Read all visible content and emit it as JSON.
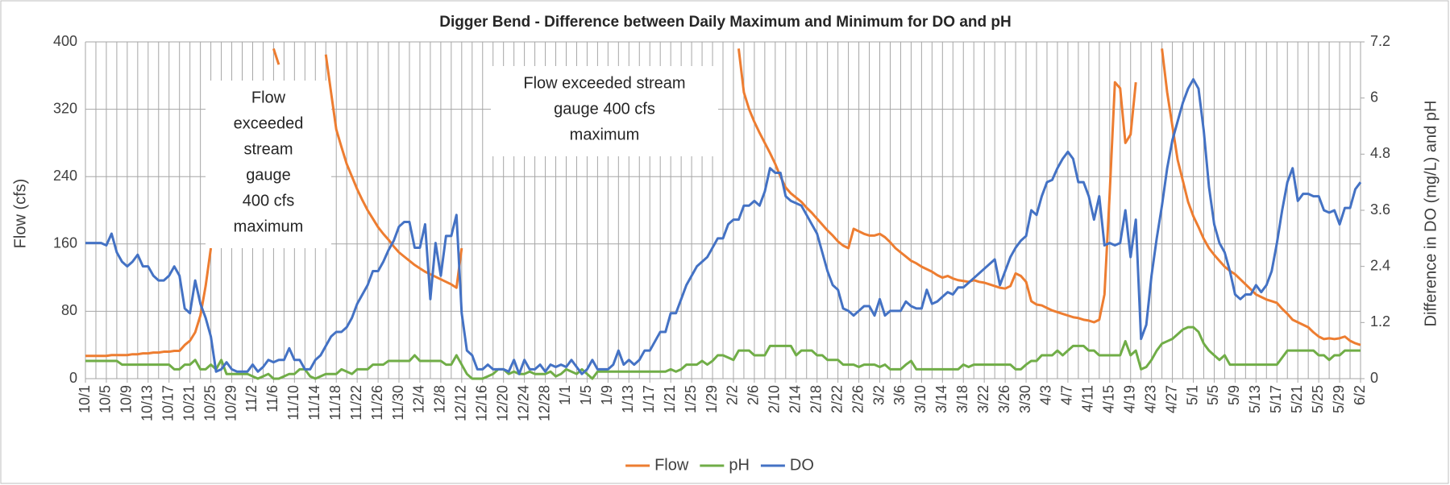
{
  "chart_data": {
    "type": "line",
    "title": "Digger Bend - Difference between Daily Maximum and Minimum for DO and pH",
    "y_label": "Flow (cfs)",
    "y2_label": "Difference in DO (mg/L) and pH",
    "annotations": [
      [
        "Flow",
        "exceeded",
        "stream",
        "gauge",
        "400 cfs",
        "maximum"
      ],
      [
        "Flow exceeded stream",
        "gauge 400 cfs",
        "maximum"
      ]
    ],
    "categories": [
      "10/1",
      null,
      null,
      null,
      "10/5",
      null,
      null,
      null,
      "10/9",
      null,
      null,
      null,
      "10/13",
      null,
      null,
      null,
      "10/17",
      null,
      null,
      null,
      "10/21",
      null,
      null,
      null,
      "10/25",
      null,
      null,
      null,
      "10/29",
      null,
      null,
      null,
      "11/2",
      null,
      null,
      null,
      "11/6",
      null,
      null,
      null,
      "11/10",
      null,
      null,
      null,
      "11/14",
      null,
      null,
      null,
      "11/18",
      null,
      null,
      null,
      "11/22",
      null,
      null,
      null,
      "11/26",
      null,
      null,
      null,
      "11/30",
      null,
      null,
      null,
      "12/4",
      null,
      null,
      null,
      "12/8",
      null,
      null,
      null,
      "12/12",
      null,
      null,
      null,
      "12/16",
      null,
      null,
      null,
      "12/20",
      null,
      null,
      null,
      "12/24",
      null,
      null,
      null,
      "12/28",
      null,
      null,
      null,
      "1/1",
      null,
      null,
      null,
      "1/5",
      null,
      null,
      null,
      "1/9",
      null,
      null,
      null,
      "1/13",
      null,
      null,
      null,
      "1/17",
      null,
      null,
      null,
      "1/21",
      null,
      null,
      null,
      "1/25",
      null,
      null,
      null,
      "1/29",
      null,
      null,
      null,
      "2/2",
      null,
      null,
      null,
      "2/6",
      null,
      null,
      null,
      "2/10",
      null,
      null,
      null,
      "2/14",
      null,
      null,
      null,
      "2/18",
      null,
      null,
      null,
      "2/22",
      null,
      null,
      null,
      "2/26",
      null,
      null,
      null,
      "3/2",
      null,
      null,
      null,
      "3/6",
      null,
      null,
      null,
      "3/10",
      null,
      null,
      null,
      "3/14",
      null,
      null,
      null,
      "3/18",
      null,
      null,
      null,
      "3/22",
      null,
      null,
      null,
      "3/26",
      null,
      null,
      null,
      "3/30",
      null,
      null,
      null,
      "4/3",
      null,
      null,
      null,
      "4/7",
      null,
      null,
      null,
      "4/11",
      null,
      null,
      null,
      "4/15",
      null,
      null,
      null,
      "4/19",
      null,
      null,
      null,
      "4/23",
      null,
      null,
      null,
      "4/27",
      null,
      null,
      null,
      "5/1",
      null,
      null,
      null,
      "5/5",
      null,
      null,
      null,
      "5/9",
      null,
      null,
      null,
      "5/13",
      null,
      null,
      null,
      "5/17",
      null,
      null,
      null,
      "5/21",
      null,
      null,
      null,
      "5/25",
      null,
      null,
      null,
      "5/29",
      null,
      null,
      null,
      "6/2"
    ],
    "series": [
      {
        "name": "Flow",
        "color": "#ed7d31",
        "axis": "y",
        "values": [
          27,
          27,
          27,
          27,
          27,
          28,
          28,
          28,
          28,
          29,
          29,
          30,
          30,
          31,
          31,
          32,
          32,
          33,
          33,
          40,
          45,
          55,
          75,
          110,
          155,
          null,
          null,
          null,
          null,
          null,
          null,
          null,
          null,
          null,
          null,
          null,
          392,
          373,
          null,
          null,
          null,
          null,
          null,
          null,
          null,
          null,
          385,
          340,
          296,
          275,
          255,
          240,
          225,
          212,
          200,
          190,
          180,
          172,
          165,
          157,
          150,
          145,
          140,
          135,
          131,
          127,
          124,
          121,
          118,
          115,
          112,
          108,
          155,
          null,
          null,
          null,
          null,
          null,
          null,
          null,
          null,
          null,
          null,
          null,
          null,
          null,
          null,
          null,
          null,
          null,
          null,
          null,
          null,
          null,
          null,
          null,
          null,
          null,
          null,
          null,
          null,
          null,
          null,
          null,
          null,
          null,
          null,
          null,
          null,
          null,
          null,
          null,
          null,
          null,
          null,
          null,
          null,
          null,
          null,
          null,
          null,
          null,
          null,
          null,
          null,
          392,
          340,
          320,
          305,
          292,
          280,
          268,
          255,
          240,
          227,
          220,
          215,
          210,
          203,
          197,
          190,
          183,
          176,
          170,
          163,
          158,
          155,
          178,
          175,
          172,
          170,
          170,
          172,
          168,
          162,
          155,
          150,
          145,
          140,
          137,
          133,
          130,
          127,
          123,
          120,
          122,
          119,
          117,
          116,
          115,
          117,
          115,
          114,
          112,
          110,
          108,
          107,
          110,
          125,
          122,
          115,
          92,
          88,
          87,
          84,
          81,
          79,
          77,
          75,
          73,
          72,
          70,
          69,
          67,
          70,
          100,
          220,
          352,
          345,
          280,
          290,
          352,
          null,
          null,
          null,
          null,
          392,
          340,
          300,
          260,
          235,
          210,
          193,
          180,
          166,
          155,
          147,
          140,
          133,
          128,
          124,
          118,
          112,
          106,
          100,
          97,
          94,
          92,
          90,
          83,
          77,
          70,
          67,
          64,
          61,
          55,
          50,
          47,
          48,
          47,
          48,
          50,
          45,
          42,
          40
        ]
      },
      {
        "name": "pH",
        "color": "#70ad47",
        "axis": "y2",
        "values": [
          0.38,
          0.38,
          0.38,
          0.38,
          0.38,
          0.38,
          0.38,
          0.3,
          0.3,
          0.3,
          0.3,
          0.3,
          0.3,
          0.3,
          0.3,
          0.3,
          0.3,
          0.2,
          0.2,
          0.3,
          0.3,
          0.4,
          0.2,
          0.2,
          0.3,
          0.2,
          0.4,
          0.1,
          0.1,
          0.1,
          0.1,
          0.1,
          0.05,
          0,
          0.05,
          0.1,
          0,
          0,
          0.05,
          0.1,
          0.1,
          0.2,
          0.2,
          0.05,
          0,
          0.05,
          0.1,
          0.1,
          0.1,
          0.2,
          0.15,
          0.1,
          0.2,
          0.2,
          0.2,
          0.3,
          0.3,
          0.3,
          0.38,
          0.38,
          0.38,
          0.38,
          0.38,
          0.5,
          0.38,
          0.38,
          0.38,
          0.38,
          0.38,
          0.3,
          0.3,
          0.5,
          0.3,
          0.1,
          0,
          0,
          0,
          0.05,
          0.1,
          0.2,
          0.2,
          0.1,
          0.15,
          0.1,
          0.1,
          0.15,
          0.1,
          0.1,
          0.1,
          0.15,
          0.05,
          0.1,
          0.2,
          0.15,
          0.1,
          0.2,
          0.1,
          0,
          0.15,
          0.15,
          0.15,
          0.15,
          0.15,
          0.15,
          0.15,
          0.15,
          0.15,
          0.15,
          0.15,
          0.15,
          0.15,
          0.15,
          0.2,
          0.15,
          0.2,
          0.3,
          0.3,
          0.3,
          0.38,
          0.3,
          0.38,
          0.5,
          0.5,
          0.45,
          0.4,
          0.6,
          0.6,
          0.6,
          0.5,
          0.5,
          0.5,
          0.7,
          0.7,
          0.7,
          0.7,
          0.7,
          0.5,
          0.6,
          0.6,
          0.6,
          0.5,
          0.5,
          0.4,
          0.4,
          0.4,
          0.3,
          0.3,
          0.3,
          0.25,
          0.3,
          0.3,
          0.3,
          0.25,
          0.3,
          0.2,
          0.2,
          0.2,
          0.3,
          0.38,
          0.2,
          0.2,
          0.2,
          0.2,
          0.2,
          0.2,
          0.2,
          0.2,
          0.2,
          0.3,
          0.25,
          0.3,
          0.3,
          0.3,
          0.3,
          0.3,
          0.3,
          0.3,
          0.3,
          0.2,
          0.2,
          0.3,
          0.38,
          0.38,
          0.5,
          0.5,
          0.5,
          0.6,
          0.5,
          0.6,
          0.7,
          0.7,
          0.7,
          0.6,
          0.6,
          0.5,
          0.5,
          0.5,
          0.5,
          0.5,
          0.8,
          0.5,
          0.6,
          0.2,
          0.25,
          0.4,
          0.6,
          0.75,
          0.8,
          0.85,
          0.95,
          1.05,
          1.1,
          1.1,
          1,
          0.75,
          0.6,
          0.5,
          0.4,
          0.5,
          0.3,
          0.3,
          0.3,
          0.3,
          0.3,
          0.3,
          0.3,
          0.3,
          0.3,
          0.3,
          0.45,
          0.6,
          0.6,
          0.6,
          0.6,
          0.6,
          0.6,
          0.5,
          0.5,
          0.4,
          0.5,
          0.5,
          0.6,
          0.6,
          0.6,
          0.6
        ]
      },
      {
        "name": "DO",
        "color": "#4472c4",
        "axis": "y2",
        "values": [
          2.9,
          2.9,
          2.9,
          2.9,
          2.85,
          3.1,
          2.7,
          2.5,
          2.4,
          2.5,
          2.65,
          2.4,
          2.4,
          2.2,
          2.1,
          2.1,
          2.2,
          2.4,
          2.2,
          1.5,
          1.4,
          2.1,
          1.6,
          1.3,
          0.9,
          0.15,
          0.2,
          0.35,
          0.2,
          0.15,
          0.15,
          0.15,
          0.3,
          0.15,
          0.25,
          0.4,
          0.35,
          0.4,
          0.4,
          0.65,
          0.4,
          0.4,
          0.2,
          0.2,
          0.4,
          0.5,
          0.7,
          0.9,
          1.0,
          1.0,
          1.1,
          1.3,
          1.6,
          1.8,
          2.0,
          2.3,
          2.3,
          2.5,
          2.75,
          2.95,
          3.25,
          3.35,
          3.35,
          2.8,
          2.8,
          3.3,
          1.7,
          2.9,
          2.2,
          3.05,
          3.05,
          3.5,
          1.4,
          0.6,
          0.5,
          0.2,
          0.2,
          0.3,
          0.2,
          0.2,
          0.2,
          0.15,
          0.4,
          0.1,
          0.4,
          0.2,
          0.2,
          0.3,
          0.15,
          0.3,
          0.25,
          0.3,
          0.25,
          0.4,
          0.25,
          0.1,
          0.2,
          0.4,
          0.2,
          0.2,
          0.2,
          0.3,
          0.6,
          0.3,
          0.4,
          0.3,
          0.4,
          0.6,
          0.6,
          0.8,
          1.0,
          1.0,
          1.4,
          1.4,
          1.7,
          2.0,
          2.2,
          2.4,
          2.5,
          2.6,
          2.8,
          3.0,
          3.0,
          3.3,
          3.4,
          3.4,
          3.7,
          3.7,
          3.8,
          3.7,
          4.0,
          4.5,
          4.4,
          4.4,
          3.9,
          3.8,
          3.75,
          3.7,
          3.5,
          3.3,
          3.1,
          2.7,
          2.3,
          2.0,
          1.9,
          1.5,
          1.45,
          1.35,
          1.45,
          1.55,
          1.55,
          1.35,
          1.7,
          1.35,
          1.45,
          1.45,
          1.45,
          1.65,
          1.55,
          1.5,
          1.5,
          1.9,
          1.6,
          1.65,
          1.75,
          1.85,
          1.8,
          1.95,
          1.95,
          2.05,
          2.15,
          2.25,
          2.35,
          2.45,
          2.55,
          2.0,
          2.3,
          2.6,
          2.8,
          2.95,
          3.05,
          3.6,
          3.5,
          3.9,
          4.2,
          4.25,
          4.5,
          4.7,
          4.85,
          4.7,
          4.2,
          4.2,
          3.9,
          3.4,
          3.9,
          2.85,
          2.9,
          2.85,
          2.9,
          3.6,
          2.6,
          3.4,
          0.85,
          1.15,
          2.2,
          3.0,
          3.7,
          4.5,
          5.1,
          5.5,
          5.9,
          6.2,
          6.4,
          6.2,
          5.3,
          4.1,
          3.3,
          2.9,
          2.7,
          2.3,
          1.8,
          1.7,
          1.8,
          1.8,
          2.0,
          1.85,
          2.0,
          2.3,
          2.9,
          3.6,
          4.2,
          4.5,
          3.8,
          3.95,
          3.95,
          3.9,
          3.9,
          3.6,
          3.55,
          3.6,
          3.3,
          3.65,
          3.65,
          4.05,
          4.2
        ]
      }
    ],
    "ylim": [
      0,
      400
    ],
    "yticks": [
      0,
      80,
      160,
      240,
      320,
      400
    ],
    "y2lim": [
      0,
      7.2
    ],
    "y2ticks": [
      0,
      1.2,
      2.4,
      3.6,
      4.8,
      6,
      7.2
    ],
    "grid": true,
    "legend": "bottom"
  }
}
